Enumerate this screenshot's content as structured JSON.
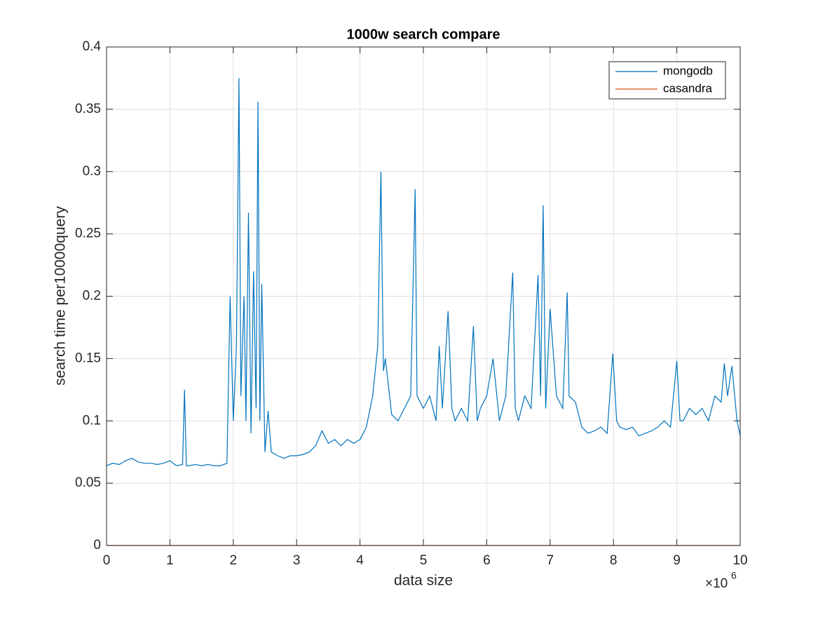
{
  "chart_data": {
    "type": "line",
    "title": "1000w search compare",
    "x_label": "data size",
    "y_label": "search time per10000query",
    "x_exponent": {
      "base": "×10",
      "power": "6"
    },
    "xlim": [
      0,
      10
    ],
    "xticks": [
      0,
      1,
      2,
      3,
      4,
      5,
      6,
      7,
      8,
      9,
      10
    ],
    "ylim": [
      0,
      0.4
    ],
    "yticks": [
      0,
      0.05,
      0.1,
      0.15,
      0.2,
      0.25,
      0.3,
      0.35,
      0.4
    ],
    "grid": true,
    "legend": "upper right",
    "series": [
      {
        "name": "mongodb",
        "color": "#0072bd",
        "x": [
          0.0,
          0.1,
          0.2,
          0.3,
          0.4,
          0.5,
          0.6,
          0.7,
          0.8,
          0.9,
          1.0,
          1.1,
          1.2,
          1.23,
          1.26,
          1.3,
          1.4,
          1.5,
          1.6,
          1.7,
          1.8,
          1.9,
          1.95,
          2.0,
          2.05,
          2.09,
          2.12,
          2.17,
          2.2,
          2.24,
          2.28,
          2.32,
          2.36,
          2.39,
          2.42,
          2.45,
          2.5,
          2.55,
          2.6,
          2.7,
          2.8,
          2.9,
          3.0,
          3.1,
          3.2,
          3.3,
          3.4,
          3.5,
          3.6,
          3.7,
          3.8,
          3.9,
          4.0,
          4.1,
          4.2,
          4.28,
          4.33,
          4.37,
          4.4,
          4.5,
          4.6,
          4.7,
          4.8,
          4.87,
          4.9,
          5.0,
          5.1,
          5.2,
          5.25,
          5.3,
          5.39,
          5.45,
          5.5,
          5.6,
          5.7,
          5.79,
          5.85,
          5.9,
          6.0,
          6.1,
          6.2,
          6.3,
          6.41,
          6.45,
          6.5,
          6.6,
          6.7,
          6.81,
          6.85,
          6.89,
          6.93,
          7.0,
          7.1,
          7.2,
          7.27,
          7.3,
          7.4,
          7.5,
          7.6,
          7.7,
          7.8,
          7.9,
          7.99,
          8.05,
          8.1,
          8.2,
          8.3,
          8.4,
          8.5,
          8.6,
          8.7,
          8.8,
          8.9,
          9.0,
          9.05,
          9.1,
          9.2,
          9.3,
          9.4,
          9.5,
          9.6,
          9.7,
          9.75,
          9.8,
          9.87,
          9.95,
          10.0
        ],
        "values": [
          0.064,
          0.066,
          0.065,
          0.068,
          0.07,
          0.067,
          0.066,
          0.066,
          0.065,
          0.066,
          0.068,
          0.064,
          0.065,
          0.125,
          0.064,
          0.064,
          0.065,
          0.064,
          0.065,
          0.064,
          0.064,
          0.066,
          0.2,
          0.1,
          0.16,
          0.375,
          0.12,
          0.2,
          0.1,
          0.267,
          0.09,
          0.22,
          0.11,
          0.356,
          0.1,
          0.21,
          0.075,
          0.108,
          0.075,
          0.072,
          0.07,
          0.072,
          0.072,
          0.073,
          0.075,
          0.08,
          0.092,
          0.082,
          0.085,
          0.08,
          0.085,
          0.082,
          0.085,
          0.095,
          0.12,
          0.16,
          0.3,
          0.14,
          0.15,
          0.105,
          0.1,
          0.11,
          0.12,
          0.286,
          0.12,
          0.11,
          0.12,
          0.1,
          0.16,
          0.11,
          0.188,
          0.11,
          0.1,
          0.11,
          0.1,
          0.176,
          0.1,
          0.11,
          0.12,
          0.15,
          0.1,
          0.12,
          0.219,
          0.11,
          0.1,
          0.12,
          0.11,
          0.217,
          0.12,
          0.273,
          0.11,
          0.19,
          0.12,
          0.11,
          0.203,
          0.12,
          0.115,
          0.095,
          0.09,
          0.092,
          0.095,
          0.09,
          0.154,
          0.1,
          0.095,
          0.093,
          0.095,
          0.088,
          0.09,
          0.092,
          0.095,
          0.1,
          0.095,
          0.148,
          0.1,
          0.1,
          0.11,
          0.105,
          0.11,
          0.1,
          0.12,
          0.115,
          0.146,
          0.12,
          0.144,
          0.1,
          0.088
        ]
      },
      {
        "name": "casandra",
        "color": "#d95319",
        "x": [
          0,
          10
        ],
        "values": [
          0,
          0
        ]
      }
    ]
  }
}
